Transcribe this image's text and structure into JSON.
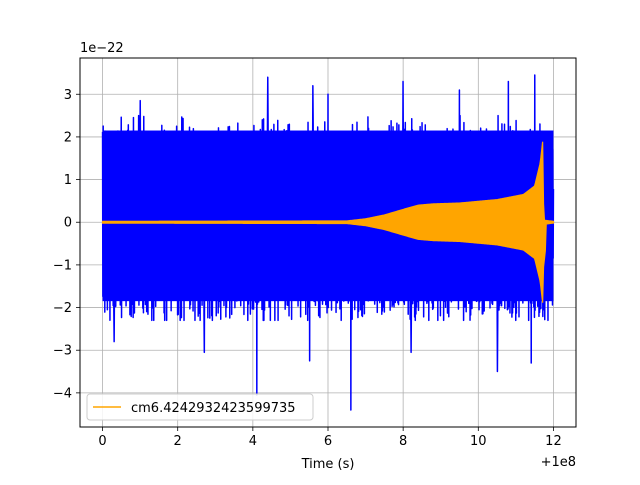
{
  "chart_data": {
    "type": "line",
    "title": "",
    "xlabel": "Time (s)",
    "ylabel": "",
    "x_offset_label": "+1e8",
    "y_scale_label": "1e−22",
    "xlim": [
      -0.6,
      12.6
    ],
    "ylim": [
      -4.8,
      3.85
    ],
    "x_ticks": [
      0,
      2,
      4,
      6,
      8,
      10,
      12
    ],
    "x_tick_labels": [
      "0",
      "2",
      "4",
      "6",
      "8",
      "10",
      "12"
    ],
    "y_ticks": [
      -4,
      -3,
      -2,
      -1,
      0,
      1,
      2,
      3
    ],
    "y_tick_labels": [
      "−4",
      "−3",
      "−2",
      "−1",
      "0",
      "1",
      "2",
      "3"
    ],
    "grid": true,
    "legend_position": "lower-left",
    "series": [
      {
        "name": "",
        "color": "#0000ff",
        "style": "noise",
        "x_start": 0,
        "x_end": 12,
        "typical_range": [
          -2.0,
          2.3
        ],
        "peaks_high": [
          [
            1.0,
            2.85
          ],
          [
            4.4,
            3.4
          ],
          [
            5.6,
            3.2
          ],
          [
            6.0,
            3.0
          ],
          [
            8.0,
            3.3
          ],
          [
            9.5,
            3.1
          ],
          [
            10.8,
            3.3
          ],
          [
            11.5,
            3.45
          ]
        ],
        "peaks_low": [
          [
            0.3,
            -2.8
          ],
          [
            2.7,
            -3.05
          ],
          [
            4.1,
            -4.05
          ],
          [
            5.5,
            -3.25
          ],
          [
            6.6,
            -4.4
          ],
          [
            8.2,
            -3.05
          ],
          [
            10.5,
            -3.5
          ],
          [
            11.4,
            -3.3
          ]
        ]
      },
      {
        "name": "cm6.4242932423599735",
        "color": "#ffa500",
        "style": "chirp_envelope",
        "x_start": 0,
        "x_end": 12,
        "envelope": [
          [
            0,
            0.02
          ],
          [
            6.5,
            0.03
          ],
          [
            7.0,
            0.08
          ],
          [
            7.5,
            0.17
          ],
          [
            8.0,
            0.3
          ],
          [
            8.4,
            0.4
          ],
          [
            8.8,
            0.43
          ],
          [
            9.5,
            0.45
          ],
          [
            10.5,
            0.53
          ],
          [
            11.2,
            0.65
          ],
          [
            11.5,
            0.85
          ],
          [
            11.65,
            1.4
          ],
          [
            11.72,
            1.95
          ],
          [
            11.74,
            0.05
          ],
          [
            12.0,
            0.02
          ]
        ],
        "lower_dip": [
          11.68,
          -1.5
        ]
      }
    ]
  }
}
